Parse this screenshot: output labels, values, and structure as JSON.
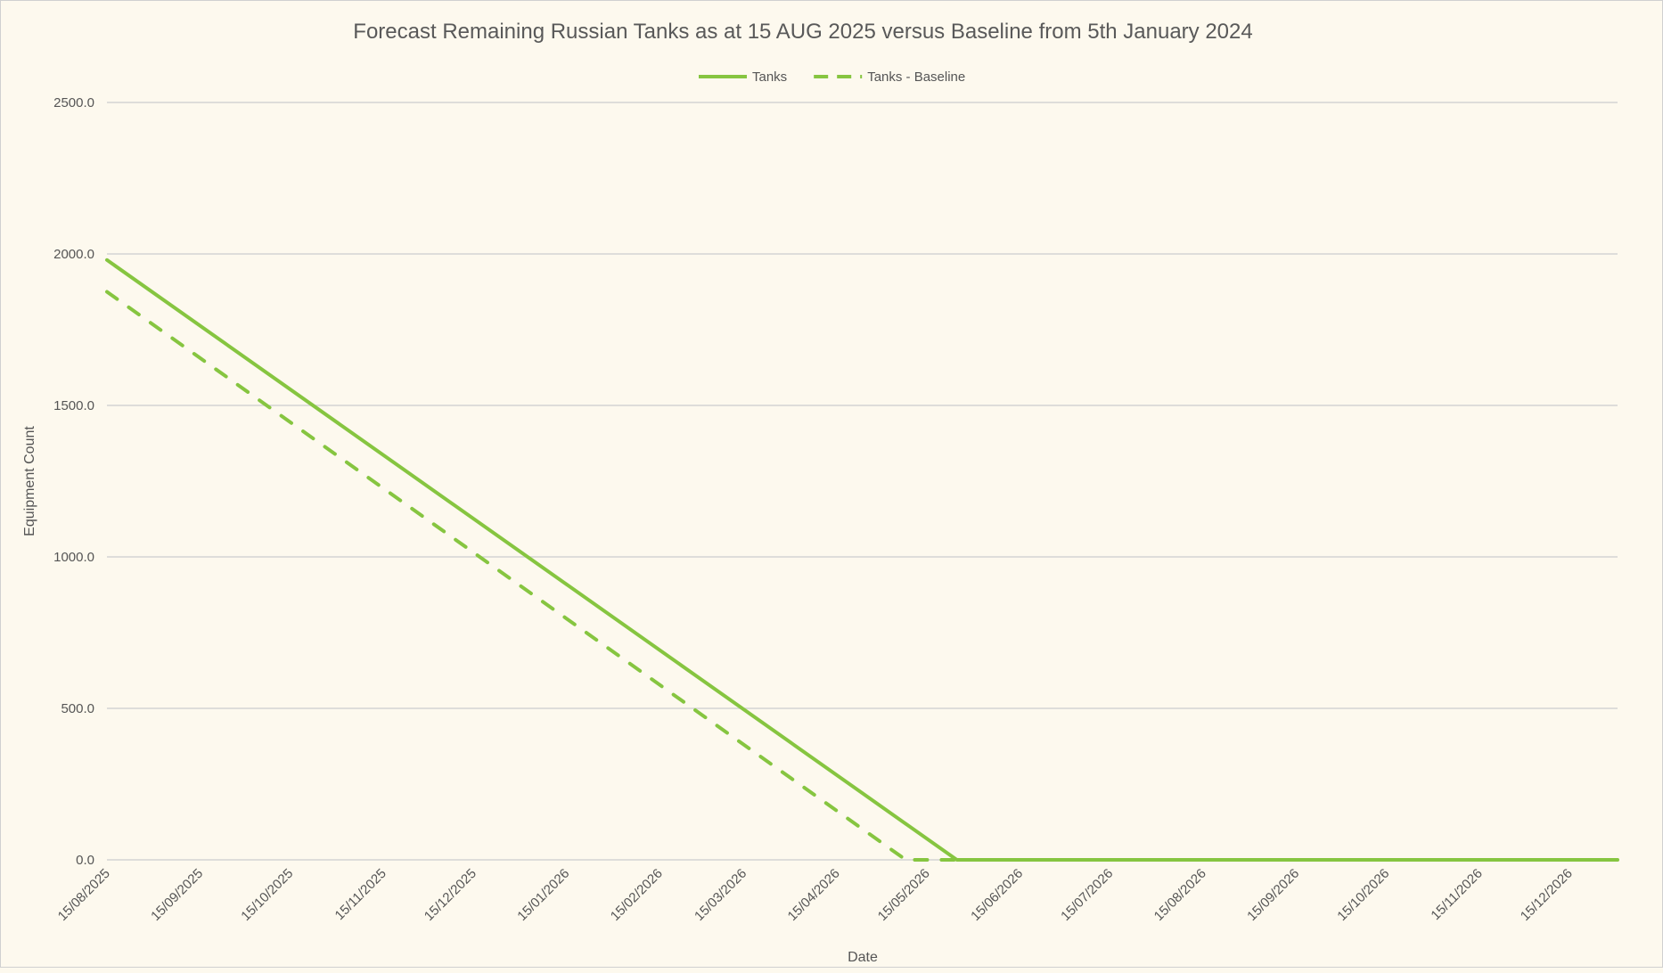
{
  "chart_data": {
    "type": "line",
    "title": "Forecast Remaining Russian Tanks as at 15 AUG 2025 versus Baseline from 5th January 2024",
    "xlabel": "Date",
    "ylabel": "Equipment Count",
    "xlim": [
      "2025-08-15",
      "2026-12-31"
    ],
    "ylim": [
      0,
      2500
    ],
    "y_ticks": [
      0,
      500,
      1000,
      1500,
      2000,
      2500
    ],
    "y_tick_format": "one-decimal",
    "x_ticks": [
      "15/08/2025",
      "15/09/2025",
      "15/10/2025",
      "15/11/2025",
      "15/12/2025",
      "15/01/2026",
      "15/02/2026",
      "15/03/2026",
      "15/04/2026",
      "15/05/2026",
      "15/06/2026",
      "15/07/2026",
      "15/08/2026",
      "15/09/2026",
      "15/10/2026",
      "15/11/2026",
      "15/12/2026"
    ],
    "grid": "horizontal",
    "legend_position": "top",
    "series": [
      {
        "name": "Tanks",
        "style": "solid",
        "color": "#86c540",
        "points": [
          [
            "2025-08-15",
            1980
          ],
          [
            "2026-05-25",
            0
          ],
          [
            "2026-12-31",
            0
          ]
        ]
      },
      {
        "name": "Tanks - Baseline",
        "style": "dashed",
        "color": "#86c540",
        "points": [
          [
            "2025-08-15",
            1875
          ],
          [
            "2026-05-08",
            0
          ],
          [
            "2026-05-25",
            0
          ]
        ]
      }
    ]
  }
}
